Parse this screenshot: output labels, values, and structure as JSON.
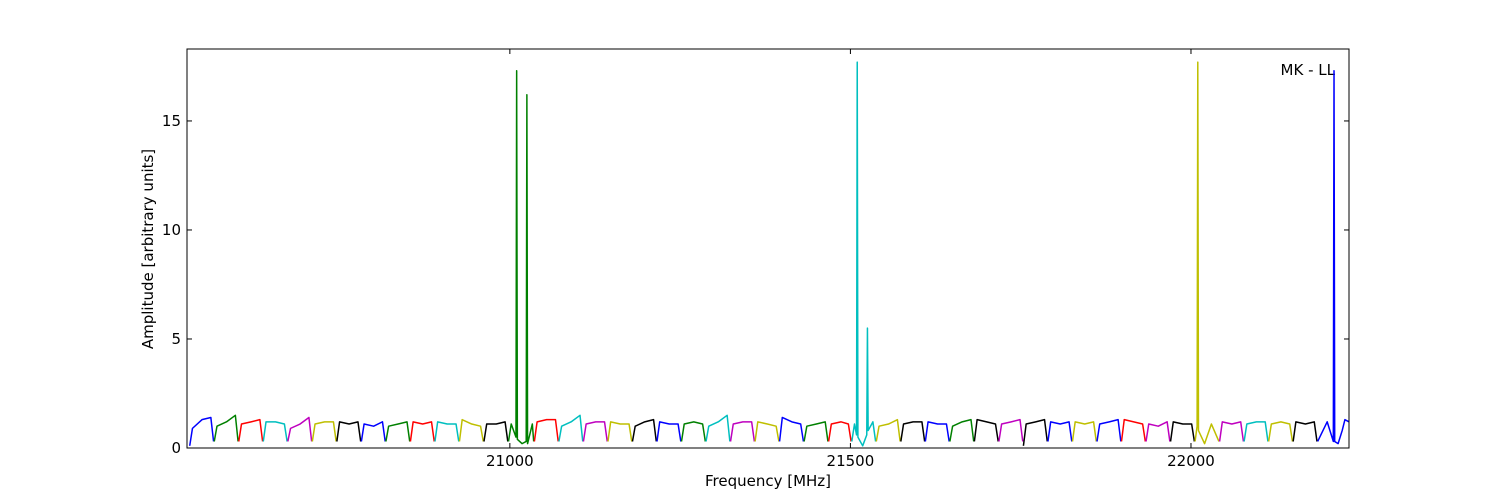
{
  "chart_data": {
    "type": "line",
    "xlabel": "Frequency [MHz]",
    "ylabel": "Amplitude [arbitrary units]",
    "annotation": "MK - LL",
    "xlim": [
      20526,
      22232
    ],
    "ylim": [
      0,
      18.3
    ],
    "xticks": [
      21000,
      21500,
      22000
    ],
    "yticks": [
      0,
      5,
      10,
      15
    ],
    "series": [
      {
        "color": "#0000ff",
        "x": [
          20530,
          20534,
          20548,
          20561,
          20565
        ],
        "values": [
          0.1,
          0.9,
          1.3,
          1.4,
          0.3
        ]
      },
      {
        "color": "#008000",
        "x": [
          20566,
          20570,
          20584,
          20597,
          20601
        ],
        "values": [
          0.3,
          1.0,
          1.2,
          1.5,
          0.3
        ]
      },
      {
        "color": "#ff0000",
        "x": [
          20602,
          20606,
          20620,
          20633,
          20637
        ],
        "values": [
          0.3,
          1.1,
          1.2,
          1.3,
          0.3
        ]
      },
      {
        "color": "#00bfbf",
        "x": [
          20638,
          20642,
          20656,
          20669,
          20673
        ],
        "values": [
          0.3,
          1.2,
          1.2,
          1.1,
          0.3
        ]
      },
      {
        "color": "#bf00bf",
        "x": [
          20674,
          20678,
          20692,
          20705,
          20709
        ],
        "values": [
          0.3,
          0.9,
          1.1,
          1.4,
          0.3
        ]
      },
      {
        "color": "#bfbf00",
        "x": [
          20710,
          20714,
          20728,
          20741,
          20745
        ],
        "values": [
          0.3,
          1.1,
          1.2,
          1.2,
          0.3
        ]
      },
      {
        "color": "#000000",
        "x": [
          20746,
          20750,
          20764,
          20777,
          20781
        ],
        "values": [
          0.3,
          1.2,
          1.1,
          1.2,
          0.3
        ]
      },
      {
        "color": "#0000ff",
        "x": [
          20782,
          20786,
          20800,
          20813,
          20817
        ],
        "values": [
          0.3,
          1.1,
          1.0,
          1.2,
          0.3
        ]
      },
      {
        "color": "#008000",
        "x": [
          20818,
          20822,
          20836,
          20849,
          20853
        ],
        "values": [
          0.3,
          1.0,
          1.1,
          1.2,
          0.3
        ]
      },
      {
        "color": "#ff0000",
        "x": [
          20854,
          20858,
          20872,
          20885,
          20889
        ],
        "values": [
          0.3,
          1.2,
          1.1,
          1.2,
          0.3
        ]
      },
      {
        "color": "#00bfbf",
        "x": [
          20890,
          20894,
          20908,
          20921,
          20925
        ],
        "values": [
          0.3,
          1.2,
          1.1,
          1.1,
          0.3
        ]
      },
      {
        "color": "#bfbf00",
        "x": [
          20926,
          20930,
          20944,
          20957,
          20961
        ],
        "values": [
          0.3,
          1.3,
          1.1,
          1.0,
          0.3
        ]
      },
      {
        "color": "#000000",
        "x": [
          20962,
          20966,
          20980,
          20993,
          20997
        ],
        "values": [
          0.3,
          1.1,
          1.1,
          1.2,
          0.3
        ]
      },
      {
        "color": "#008000",
        "x": [
          20998,
          21002,
          21009,
          21010,
          21011,
          21018,
          21024,
          21025,
          21026,
          21033,
          21035
        ],
        "values": [
          0.3,
          1.1,
          0.5,
          17.3,
          0.4,
          0.2,
          0.3,
          16.2,
          0.2,
          1.1,
          0.3
        ]
      },
      {
        "color": "#ff0000",
        "x": [
          21036,
          21040,
          21054,
          21067,
          21071
        ],
        "values": [
          0.3,
          1.2,
          1.3,
          1.3,
          0.3
        ]
      },
      {
        "color": "#00bfbf",
        "x": [
          21072,
          21076,
          21090,
          21103,
          21107
        ],
        "values": [
          0.3,
          1.0,
          1.2,
          1.5,
          0.3
        ]
      },
      {
        "color": "#bf00bf",
        "x": [
          21108,
          21112,
          21126,
          21139,
          21143
        ],
        "values": [
          0.3,
          1.1,
          1.2,
          1.2,
          0.3
        ]
      },
      {
        "color": "#bfbf00",
        "x": [
          21144,
          21148,
          21162,
          21175,
          21179
        ],
        "values": [
          0.3,
          1.2,
          1.1,
          1.1,
          0.3
        ]
      },
      {
        "color": "#000000",
        "x": [
          21180,
          21184,
          21198,
          21211,
          21215
        ],
        "values": [
          0.3,
          1.0,
          1.2,
          1.3,
          0.3
        ]
      },
      {
        "color": "#0000ff",
        "x": [
          21216,
          21220,
          21234,
          21247,
          21251
        ],
        "values": [
          0.3,
          1.2,
          1.1,
          1.1,
          0.3
        ]
      },
      {
        "color": "#008000",
        "x": [
          21252,
          21256,
          21270,
          21283,
          21287
        ],
        "values": [
          0.3,
          1.1,
          1.2,
          1.1,
          0.3
        ]
      },
      {
        "color": "#00bfbf",
        "x": [
          21288,
          21292,
          21306,
          21319,
          21323
        ],
        "values": [
          0.3,
          1.0,
          1.2,
          1.5,
          0.3
        ]
      },
      {
        "color": "#bf00bf",
        "x": [
          21324,
          21328,
          21342,
          21355,
          21359
        ],
        "values": [
          0.3,
          1.1,
          1.2,
          1.2,
          0.3
        ]
      },
      {
        "color": "#bfbf00",
        "x": [
          21360,
          21364,
          21378,
          21391,
          21395
        ],
        "values": [
          0.3,
          1.2,
          1.1,
          1.0,
          0.3
        ]
      },
      {
        "color": "#0000ff",
        "x": [
          21396,
          21400,
          21414,
          21427,
          21431
        ],
        "values": [
          0.3,
          1.4,
          1.2,
          1.1,
          0.3
        ]
      },
      {
        "color": "#008000",
        "x": [
          21432,
          21436,
          21450,
          21463,
          21467
        ],
        "values": [
          0.3,
          1.0,
          1.1,
          1.2,
          0.3
        ]
      },
      {
        "color": "#ff0000",
        "x": [
          21468,
          21472,
          21486,
          21497,
          21501
        ],
        "values": [
          0.3,
          1.1,
          1.2,
          1.1,
          0.3
        ]
      },
      {
        "color": "#00bfbf",
        "x": [
          21502,
          21506,
          21509,
          21510,
          21511,
          21518,
          21524,
          21525,
          21526,
          21533,
          21537
        ],
        "values": [
          0.3,
          1.1,
          0.6,
          17.7,
          0.5,
          0.1,
          0.6,
          5.5,
          0.8,
          1.2,
          0.3
        ]
      },
      {
        "color": "#bfbf00",
        "x": [
          21538,
          21542,
          21556,
          21569,
          21573
        ],
        "values": [
          0.3,
          1.0,
          1.1,
          1.3,
          0.3
        ]
      },
      {
        "color": "#000000",
        "x": [
          21574,
          21578,
          21592,
          21605,
          21609
        ],
        "values": [
          0.3,
          1.1,
          1.2,
          1.2,
          0.3
        ]
      },
      {
        "color": "#0000ff",
        "x": [
          21610,
          21614,
          21628,
          21641,
          21645
        ],
        "values": [
          0.3,
          1.2,
          1.1,
          1.1,
          0.3
        ]
      },
      {
        "color": "#008000",
        "x": [
          21646,
          21650,
          21664,
          21677,
          21681
        ],
        "values": [
          0.3,
          1.0,
          1.2,
          1.3,
          0.3
        ]
      },
      {
        "color": "#000000",
        "x": [
          21682,
          21686,
          21700,
          21713,
          21717
        ],
        "values": [
          0.3,
          1.3,
          1.2,
          1.1,
          0.3
        ]
      },
      {
        "color": "#bf00bf",
        "x": [
          21718,
          21722,
          21736,
          21749,
          21753
        ],
        "values": [
          0.3,
          1.1,
          1.2,
          1.3,
          0.3
        ]
      },
      {
        "color": "#000000",
        "x": [
          21754,
          21758,
          21772,
          21785,
          21789
        ],
        "values": [
          0.1,
          1.1,
          1.2,
          1.3,
          0.3
        ]
      },
      {
        "color": "#0000ff",
        "x": [
          21790,
          21794,
          21808,
          21821,
          21825
        ],
        "values": [
          0.3,
          1.2,
          1.1,
          1.2,
          0.3
        ]
      },
      {
        "color": "#bfbf00",
        "x": [
          21826,
          21830,
          21844,
          21857,
          21861
        ],
        "values": [
          0.3,
          1.2,
          1.1,
          1.2,
          0.3
        ]
      },
      {
        "color": "#0000ff",
        "x": [
          21862,
          21866,
          21880,
          21893,
          21897
        ],
        "values": [
          0.3,
          1.1,
          1.2,
          1.3,
          0.3
        ]
      },
      {
        "color": "#ff0000",
        "x": [
          21898,
          21902,
          21916,
          21929,
          21933
        ],
        "values": [
          0.3,
          1.3,
          1.2,
          1.1,
          0.3
        ]
      },
      {
        "color": "#bf00bf",
        "x": [
          21934,
          21938,
          21952,
          21965,
          21969
        ],
        "values": [
          0.3,
          1.1,
          1.0,
          1.2,
          0.3
        ]
      },
      {
        "color": "#000000",
        "x": [
          21970,
          21974,
          21988,
          22001,
          22005
        ],
        "values": [
          0.3,
          1.2,
          1.1,
          1.1,
          0.3
        ]
      },
      {
        "color": "#bfbf00",
        "x": [
          22006,
          22009,
          22010,
          22011,
          22020,
          22030,
          22041
        ],
        "values": [
          0.3,
          1.0,
          17.7,
          0.8,
          0.2,
          1.1,
          0.3
        ]
      },
      {
        "color": "#bf00bf",
        "x": [
          22042,
          22046,
          22060,
          22073,
          22077
        ],
        "values": [
          0.3,
          1.2,
          1.1,
          1.2,
          0.3
        ]
      },
      {
        "color": "#00bfbf",
        "x": [
          22078,
          22082,
          22096,
          22109,
          22113
        ],
        "values": [
          0.3,
          1.1,
          1.2,
          1.2,
          0.3
        ]
      },
      {
        "color": "#bfbf00",
        "x": [
          22114,
          22118,
          22132,
          22145,
          22149
        ],
        "values": [
          0.3,
          1.1,
          1.2,
          1.1,
          0.3
        ]
      },
      {
        "color": "#000000",
        "x": [
          22150,
          22154,
          22168,
          22181,
          22185
        ],
        "values": [
          0.3,
          1.2,
          1.1,
          1.2,
          0.3
        ]
      },
      {
        "color": "#0000ff",
        "x": [
          22186,
          22200,
          22209,
          22210,
          22211,
          22216,
          22222,
          22226,
          22232
        ],
        "values": [
          0.3,
          1.2,
          0.3,
          17.3,
          0.3,
          0.2,
          0.8,
          1.3,
          1.2
        ]
      }
    ]
  }
}
